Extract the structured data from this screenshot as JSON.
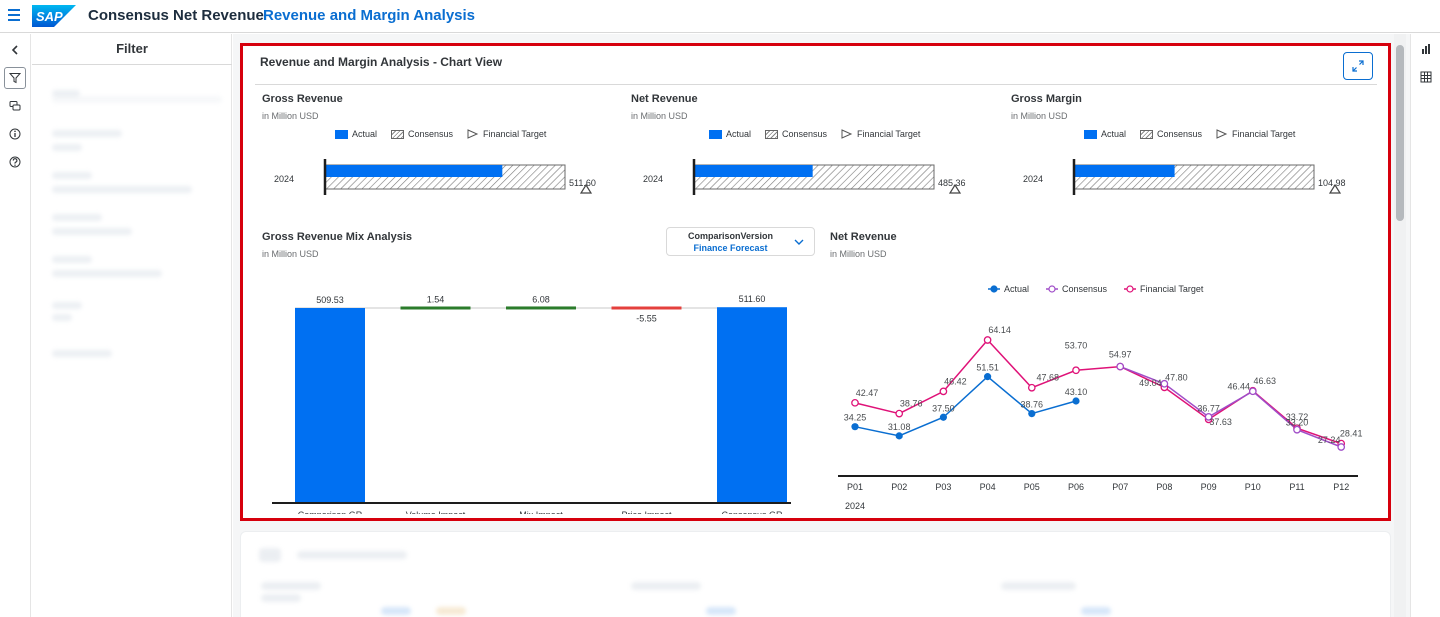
{
  "header": {
    "logo_text": "SAP",
    "app_title": "Consensus Net Revenue",
    "page_title": "Revenue and Margin Analysis"
  },
  "filter": {
    "title": "Filter"
  },
  "card": {
    "title": "Revenue and Margin Analysis - Chart View"
  },
  "legend_bullet": {
    "actual": "Actual",
    "consensus": "Consensus",
    "target": "Financial Target"
  },
  "legend_line": {
    "actual": "Actual",
    "consensus": "Consensus",
    "target": "Financial Target"
  },
  "dropdown": {
    "label": "ComparisonVersion",
    "value": "Finance Forecast"
  },
  "colors": {
    "actual": "#0a6ed1",
    "bar_blue": "#0070f2",
    "consensus_line": "#a04ec8",
    "target_line": "#df1278",
    "positive": "#2b7c2b",
    "negative": "#e4403d"
  },
  "chart_data": [
    {
      "type": "bar",
      "title": "Gross Revenue",
      "subtitle": "in Million USD",
      "categories": [
        "2024"
      ],
      "series": [
        {
          "name": "Actual",
          "values": [
            378
          ]
        },
        {
          "name": "Consensus",
          "values": [
            511.6
          ]
        },
        {
          "name": "Financial Target",
          "values": [
            511.6
          ]
        }
      ],
      "value_label": "511.60",
      "xlim": [
        0,
        511.6
      ]
    },
    {
      "type": "bar",
      "title": "Net Revenue",
      "subtitle": "in Million USD",
      "categories": [
        "2024"
      ],
      "series": [
        {
          "name": "Actual",
          "values": [
            240
          ]
        },
        {
          "name": "Consensus",
          "values": [
            485.36
          ]
        },
        {
          "name": "Financial Target",
          "values": [
            485.36
          ]
        }
      ],
      "value_label": "485.36",
      "xlim": [
        0,
        485.36
      ]
    },
    {
      "type": "bar",
      "title": "Gross Margin",
      "subtitle": "in Million USD",
      "categories": [
        "2024"
      ],
      "series": [
        {
          "name": "Actual",
          "values": [
            44
          ]
        },
        {
          "name": "Consensus",
          "values": [
            104.98
          ]
        },
        {
          "name": "Financial Target",
          "values": [
            104.98
          ]
        }
      ],
      "value_label": "104.98",
      "xlim": [
        0,
        104.98
      ]
    },
    {
      "type": "bar",
      "title": "Gross Revenue Mix Analysis",
      "subtitle": "in Million USD",
      "categories": [
        "Comparison GR",
        "Volume Impact",
        "Mix Impact",
        "Price Impact",
        "Consensus GR"
      ],
      "values": [
        509.53,
        1.54,
        6.08,
        -5.55,
        511.6
      ],
      "labels": [
        "509.53",
        "1.54",
        "6.08",
        "-5.55",
        "511.60"
      ]
    },
    {
      "type": "line",
      "title": "Net Revenue",
      "subtitle": "in Million USD",
      "categories": [
        "P01",
        "P02",
        "P03",
        "P04",
        "P05",
        "P06",
        "P07",
        "P08",
        "P09",
        "P10",
        "P11",
        "P12"
      ],
      "year_label": "2024",
      "series": [
        {
          "name": "Actual",
          "values": [
            34.25,
            31.08,
            37.5,
            51.51,
            38.76,
            43.1,
            null,
            null,
            null,
            null,
            null,
            null
          ]
        },
        {
          "name": "Consensus",
          "values": [
            null,
            null,
            null,
            null,
            null,
            null,
            54.97,
            49.04,
            37.63,
            46.44,
            33.2,
            27.24
          ]
        },
        {
          "name": "Financial Target",
          "values": [
            42.47,
            38.76,
            46.42,
            64.14,
            47.68,
            53.7,
            54.97,
            47.8,
            36.77,
            46.63,
            33.72,
            28.41
          ]
        }
      ],
      "labels": {
        "actual": [
          "34.25",
          "31.08",
          "37.50",
          "51.51",
          "38.76",
          "43.10"
        ],
        "consensus": [
          "54.97",
          "49.04",
          "37.63",
          "46.44",
          "33.20",
          "27.24"
        ],
        "target": [
          "42.47",
          "38.76",
          "46.42",
          "64.14",
          "47.68",
          "53.70",
          "47.80",
          "36.77",
          "46.63",
          "33.72",
          "28.41"
        ]
      }
    }
  ]
}
